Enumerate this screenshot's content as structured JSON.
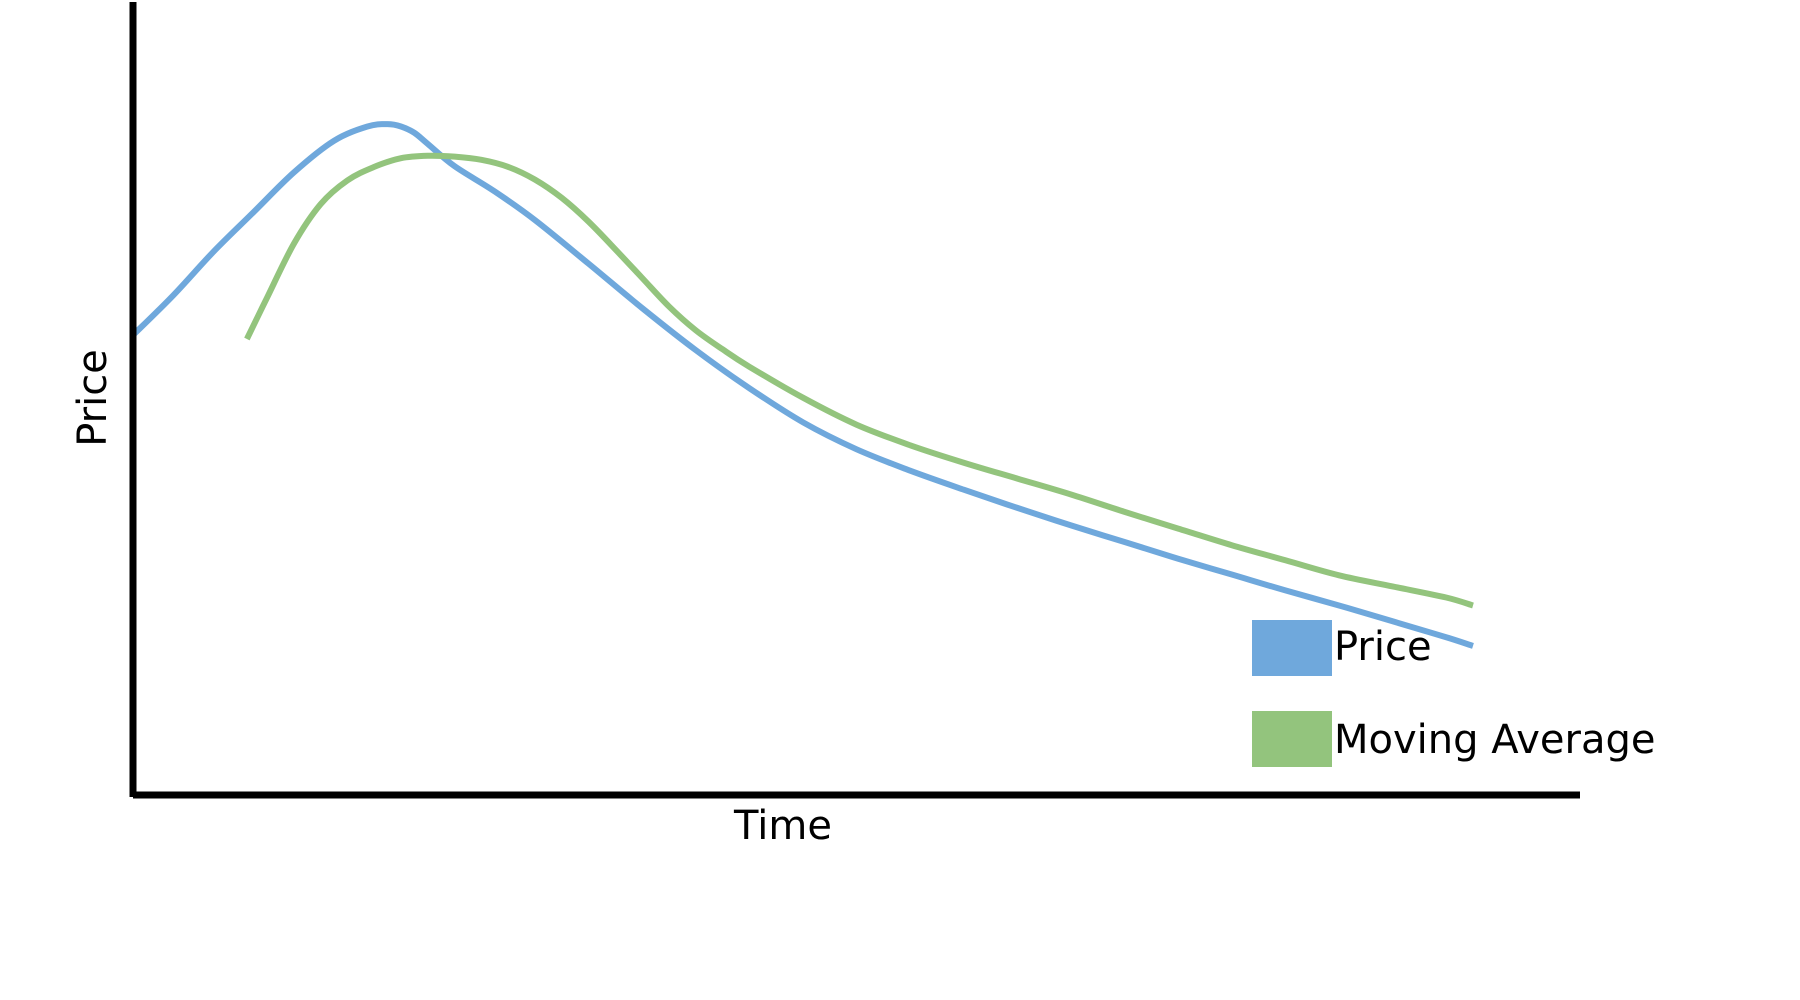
{
  "chart_data": {
    "type": "line",
    "title": "",
    "xlabel": "Time",
    "ylabel": "Price",
    "xlim": [
      0,
      100
    ],
    "ylim": [
      0,
      100
    ],
    "grid": false,
    "legend_position": "bottom-right",
    "series": [
      {
        "name": "Price",
        "color": "#6fa8dc",
        "x": [
          0,
          3,
          6,
          9,
          12,
          15,
          17.5,
          19,
          20,
          21,
          22,
          24,
          27,
          30,
          34,
          38,
          42,
          46,
          50,
          54,
          58,
          62,
          66,
          70,
          74,
          78,
          82,
          86,
          90,
          94,
          98,
          100
        ],
        "y": [
          58,
          63,
          68.5,
          73.5,
          78.5,
          82.5,
          84.3,
          84.6,
          84.3,
          83.5,
          82.1,
          79.3,
          76.1,
          72.5,
          67,
          61.4,
          56.1,
          51.3,
          47,
          43.6,
          40.9,
          38.5,
          36.2,
          34,
          31.9,
          29.8,
          27.8,
          25.8,
          23.9,
          21.9,
          19.9,
          18.8
        ]
      },
      {
        "name": "Moving Average",
        "color": "#93c47d",
        "x": [
          8.5,
          10,
          12,
          14,
          16,
          18,
          20,
          22,
          24,
          26,
          28,
          30,
          32,
          34,
          36,
          38,
          40,
          42,
          44,
          46,
          50,
          54,
          58,
          62,
          66,
          70,
          74,
          78,
          82,
          86,
          90,
          94,
          98,
          100
        ],
        "y": [
          57.5,
          62.7,
          69.5,
          74.5,
          77.5,
          79.2,
          80.3,
          80.6,
          80.5,
          80.1,
          79.2,
          77.6,
          75.3,
          72.3,
          68.8,
          65.2,
          61.6,
          58.6,
          56.2,
          54,
          50.1,
          46.7,
          44.1,
          41.9,
          39.9,
          37.9,
          35.7,
          33.6,
          31.5,
          29.6,
          27.7,
          26.3,
          24.9,
          23.9
        ]
      }
    ]
  }
}
